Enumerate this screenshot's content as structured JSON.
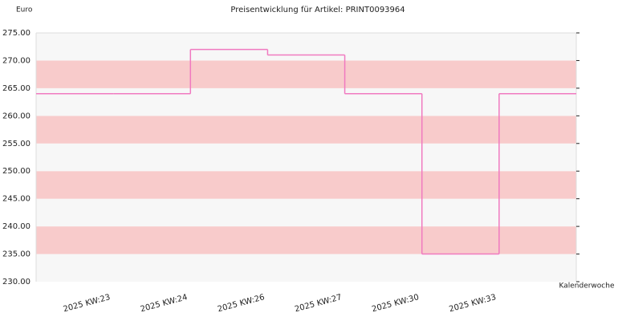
{
  "chart_data": {
    "type": "step",
    "title": "Preisentwicklung für Artikel: PRINT0093964",
    "y_label": "Euro",
    "x_label": "Kalenderwoche",
    "categories": [
      "2025 KW:23",
      "2025 KW:24",
      "2025 KW:26",
      "2025 KW:27",
      "2025 KW:30",
      "2025 KW:33"
    ],
    "values": [
      264,
      272,
      271,
      264,
      235,
      264
    ],
    "color": "#f07ac0",
    "band_colors": [
      "#f7f7f7",
      "#f8cbcb"
    ],
    "ylim": [
      230,
      275
    ],
    "yticks": [
      {
        "value": 230,
        "label": "230.00"
      },
      {
        "value": 235,
        "label": "235.00"
      },
      {
        "value": 240,
        "label": "240.00"
      },
      {
        "value": 245,
        "label": "245.00"
      },
      {
        "value": 250,
        "label": "250.00"
      },
      {
        "value": 255,
        "label": "255.00"
      },
      {
        "value": 260,
        "label": "260.00"
      },
      {
        "value": 265,
        "label": "265.00"
      },
      {
        "value": 270,
        "label": "270.00"
      },
      {
        "value": 275,
        "label": "275.00"
      }
    ]
  }
}
